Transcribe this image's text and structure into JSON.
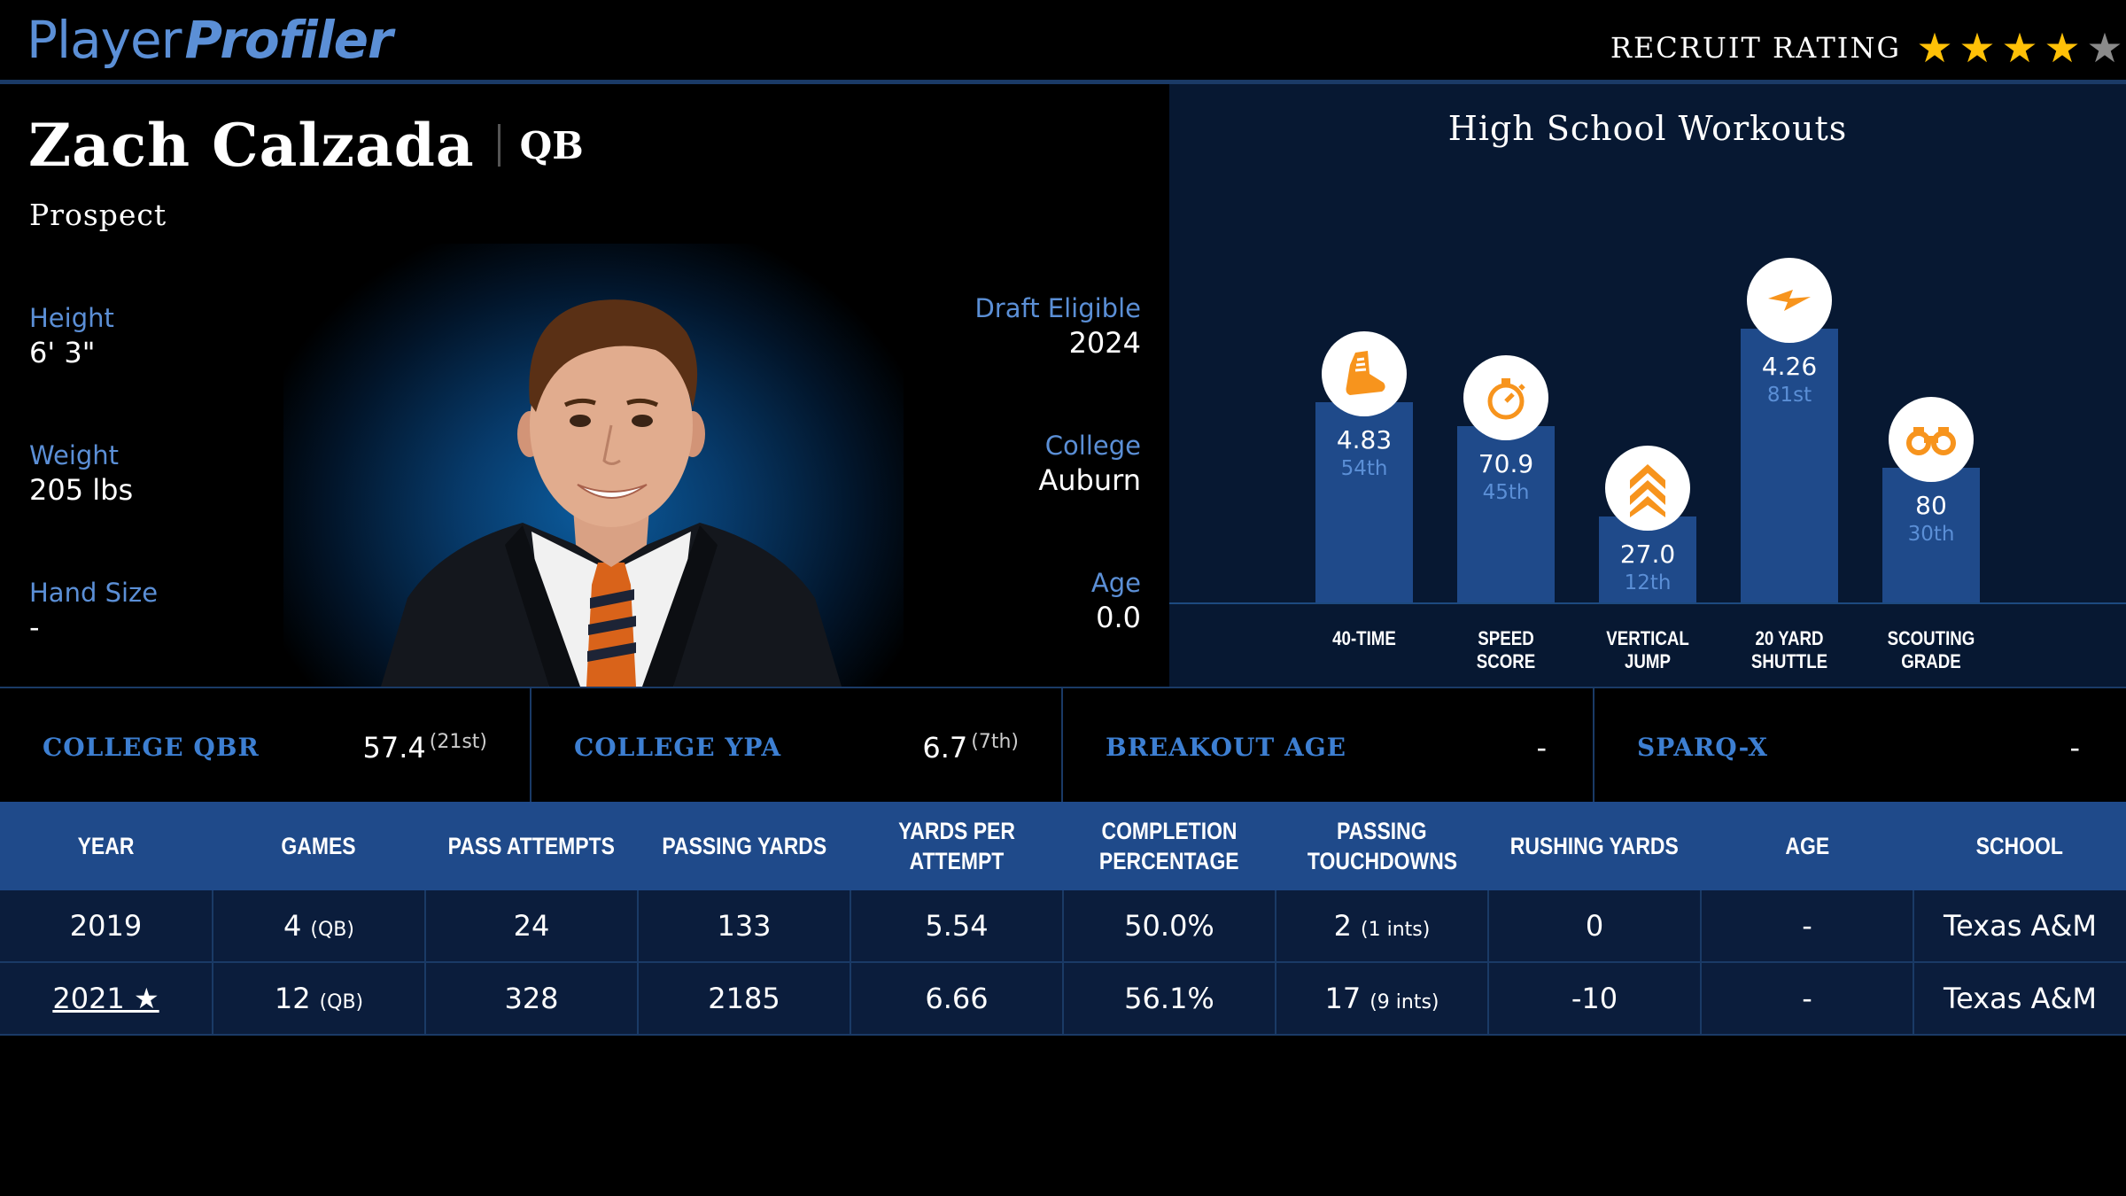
{
  "brand": {
    "part1": "Player",
    "part2": "Profiler"
  },
  "recruit_rating": {
    "label": "RECRUIT RATING",
    "stars_filled": 4,
    "stars_total": 5,
    "star_glyph": "★"
  },
  "player": {
    "name": "Zach Calzada",
    "position": "QB",
    "status": "Prospect",
    "height": {
      "label": "Height",
      "value": "6' 3\""
    },
    "weight": {
      "label": "Weight",
      "value": "205 lbs"
    },
    "hand_size": {
      "label": "Hand Size",
      "value": "-"
    },
    "draft_eligible": {
      "label": "Draft Eligible",
      "value": "2024"
    },
    "college": {
      "label": "College",
      "value": "Auburn"
    },
    "age": {
      "label": "Age",
      "value": "0.0"
    }
  },
  "workouts": {
    "title": "High School Workouts",
    "items": [
      {
        "label_line1": "40-TIME",
        "label_line2": "",
        "value": "4.83",
        "percentile_text": "54th",
        "percentile": 54,
        "icon": "shoe-icon"
      },
      {
        "label_line1": "SPEED",
        "label_line2": "SCORE",
        "value": "70.9",
        "percentile_text": "45th",
        "percentile": 45,
        "icon": "stopwatch-icon"
      },
      {
        "label_line1": "VERTICAL",
        "label_line2": "JUMP",
        "value": "27.0",
        "percentile_text": "12th",
        "percentile": 12,
        "icon": "chevrons-up-icon"
      },
      {
        "label_line1": "20 YARD",
        "label_line2": "SHUTTLE",
        "value": "4.26",
        "percentile_text": "81st",
        "percentile": 81,
        "icon": "lightning-icon"
      },
      {
        "label_line1": "SCOUTING",
        "label_line2": "GRADE",
        "value": "80",
        "percentile_text": "30th",
        "percentile": 30,
        "icon": "binoculars-icon"
      }
    ]
  },
  "metrics": [
    {
      "label": "COLLEGE QBR",
      "value": "57.4",
      "rank": "(21st)"
    },
    {
      "label": "COLLEGE YPA",
      "value": "6.7",
      "rank": "(7th)"
    },
    {
      "label": "BREAKOUT AGE",
      "value": "-",
      "rank": ""
    },
    {
      "label": "SPARQ-X",
      "value": "-",
      "rank": ""
    }
  ],
  "table": {
    "headers": [
      [
        "YEAR"
      ],
      [
        "GAMES"
      ],
      [
        "PASS ATTEMPTS"
      ],
      [
        "PASSING YARDS"
      ],
      [
        "YARDS PER ATTEMPT"
      ],
      [
        "COMPLETION",
        "PERCENTAGE"
      ],
      [
        "PASSING",
        "TOUCHDOWNS"
      ],
      [
        "RUSHING YARDS"
      ],
      [
        "AGE"
      ],
      [
        "SCHOOL"
      ]
    ],
    "rows": [
      {
        "year": "2019",
        "year_link": false,
        "games": "4",
        "games_sub": "(QB)",
        "pass_attempts": "24",
        "passing_yards": "133",
        "ypa": "5.54",
        "completion": "50.0%",
        "td": "2",
        "td_sub": "(1 ints)",
        "rushing_yards": "0",
        "age": "-",
        "school": "Texas A&M"
      },
      {
        "year": "2021 ★",
        "year_link": true,
        "games": "12",
        "games_sub": "(QB)",
        "pass_attempts": "328",
        "passing_yards": "2185",
        "ypa": "6.66",
        "completion": "56.1%",
        "td": "17",
        "td_sub": "(9 ints)",
        "rushing_yards": "-10",
        "age": "-",
        "school": "Texas A&M"
      }
    ]
  },
  "colors": {
    "accent": "#5b8fd6",
    "bar": "#1f4a8a",
    "icon_orange": "#f7941d",
    "star": "#ffc107"
  }
}
